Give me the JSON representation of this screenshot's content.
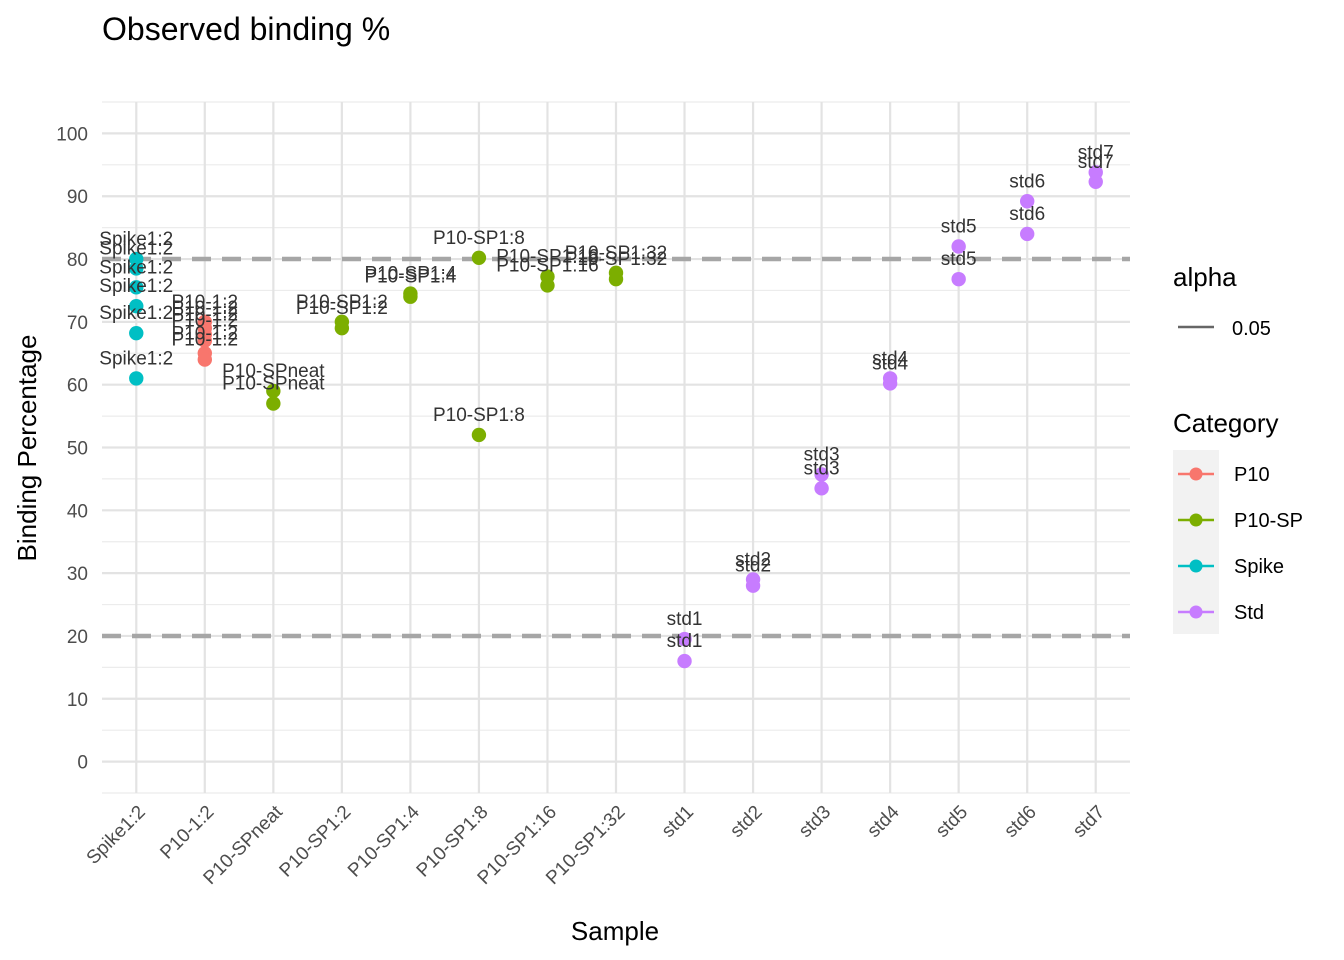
{
  "chart_data": {
    "type": "scatter",
    "title": "Observed binding %",
    "xlabel": "Sample",
    "ylabel": "Binding Percentage",
    "ylim": [
      -5,
      105
    ],
    "yticks": [
      0,
      10,
      20,
      30,
      40,
      50,
      60,
      70,
      80,
      90,
      100
    ],
    "categories": [
      "Spike1:2",
      "P10-1:2",
      "P10-SPneat",
      "P10-SP1:2",
      "P10-SP1:4",
      "P10-SP1:8",
      "P10-SP1:16",
      "P10-SP1:32",
      "std1",
      "std2",
      "std3",
      "std4",
      "std5",
      "std6",
      "std7"
    ],
    "grid": true,
    "legend_position": "right",
    "reference_lines": [
      {
        "y": 20,
        "style": "dashed",
        "color": "#a6a6a6"
      },
      {
        "y": 80,
        "style": "dashed",
        "color": "#a6a6a6"
      }
    ],
    "alpha_legend": {
      "title": "alpha",
      "value": "0.05"
    },
    "category_legend_title": "Category",
    "series": [
      {
        "name": "P10",
        "color": "#F8766D",
        "points": [
          {
            "x": "P10-1:2",
            "y": 70.0,
            "label": "P10-1:2"
          },
          {
            "x": "P10-1:2",
            "y": 69.0,
            "label": "P10-1:2"
          },
          {
            "x": "P10-1:2",
            "y": 68.0,
            "label": "P10-1:2"
          },
          {
            "x": "P10-1:2",
            "y": 67.0,
            "label": "P10-1:2"
          },
          {
            "x": "P10-1:2",
            "y": 65.0,
            "label": "P10-1:2"
          },
          {
            "x": "P10-1:2",
            "y": 64.0,
            "label": "P10-1:2"
          }
        ]
      },
      {
        "name": "P10-SP",
        "color": "#7CAE00",
        "points": [
          {
            "x": "P10-SPneat",
            "y": 59.0,
            "label": "P10-SPneat"
          },
          {
            "x": "P10-SPneat",
            "y": 57.0,
            "label": "P10-SPneat"
          },
          {
            "x": "P10-SP1:2",
            "y": 70.0,
            "label": "P10-SP1:2"
          },
          {
            "x": "P10-SP1:2",
            "y": 69.0,
            "label": "P10-SP1:2"
          },
          {
            "x": "P10-SP1:4",
            "y": 74.5,
            "label": "P10-SP1:4"
          },
          {
            "x": "P10-SP1:4",
            "y": 74.0,
            "label": "P10-SP1:4"
          },
          {
            "x": "P10-SP1:8",
            "y": 80.2,
            "label": "P10-SP1:8"
          },
          {
            "x": "P10-SP1:8",
            "y": 52.0,
            "label": "P10-SP1:8"
          },
          {
            "x": "P10-SP1:16",
            "y": 77.2,
            "label": "P10-SP1:16"
          },
          {
            "x": "P10-SP1:16",
            "y": 75.8,
            "label": "P10-SP1:16"
          },
          {
            "x": "P10-SP1:32",
            "y": 77.8,
            "label": "P10-SP1:32"
          },
          {
            "x": "P10-SP1:32",
            "y": 76.8,
            "label": "P10-SP1:32"
          }
        ]
      },
      {
        "name": "Spike",
        "color": "#00BFC4",
        "points": [
          {
            "x": "Spike1:2",
            "y": 80.0,
            "label": "Spike1:2"
          },
          {
            "x": "Spike1:2",
            "y": 78.5,
            "label": "Spike1:2"
          },
          {
            "x": "Spike1:2",
            "y": 75.5,
            "label": "Spike1:2"
          },
          {
            "x": "Spike1:2",
            "y": 72.5,
            "label": "Spike1:2"
          },
          {
            "x": "Spike1:2",
            "y": 68.2,
            "label": "Spike1:2"
          },
          {
            "x": "Spike1:2",
            "y": 61.0,
            "label": "Spike1:2"
          }
        ]
      },
      {
        "name": "Std",
        "color": "#C77CFF",
        "points": [
          {
            "x": "std1",
            "y": 19.5,
            "label": "std1"
          },
          {
            "x": "std1",
            "y": 16.0,
            "label": "std1"
          },
          {
            "x": "std2",
            "y": 29.0,
            "label": "std2"
          },
          {
            "x": "std2",
            "y": 28.0,
            "label": "std2"
          },
          {
            "x": "std3",
            "y": 45.7,
            "label": "std3"
          },
          {
            "x": "std3",
            "y": 43.5,
            "label": "std3"
          },
          {
            "x": "std4",
            "y": 61.0,
            "label": "std4"
          },
          {
            "x": "std4",
            "y": 60.2,
            "label": "std4"
          },
          {
            "x": "std5",
            "y": 82.0,
            "label": "std5"
          },
          {
            "x": "std5",
            "y": 76.8,
            "label": "std5"
          },
          {
            "x": "std6",
            "y": 89.2,
            "label": "std6"
          },
          {
            "x": "std6",
            "y": 84.0,
            "label": "std6"
          },
          {
            "x": "std7",
            "y": 93.8,
            "label": "std7"
          },
          {
            "x": "std7",
            "y": 92.3,
            "label": "std7"
          }
        ]
      }
    ]
  }
}
